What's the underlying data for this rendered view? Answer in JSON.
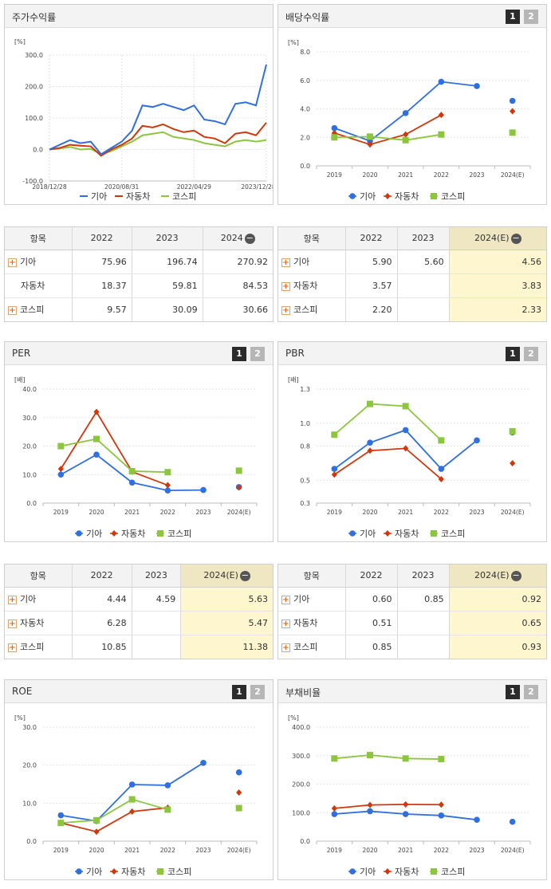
{
  "colors": {
    "kia": "#2f6fe0",
    "auto": "#d0380c",
    "kospi": "#8cc63f"
  },
  "series_names": [
    "기아",
    "자동차",
    "코스피"
  ],
  "stock_return": {
    "title": "주가수익률",
    "chart_data": {
      "type": "line",
      "unit": "[%]",
      "ylim": [
        -100,
        300
      ],
      "yticks": [
        "300.0",
        "200.0",
        "100.0",
        "0.0",
        "-100.0"
      ],
      "xticks": [
        "2018/12/28",
        "2020/08/31",
        "2022/04/29",
        "2023/12/28"
      ],
      "x": [
        "2018/12/28",
        "2019/03",
        "2019/06",
        "2019/09",
        "2019/12",
        "2020/03",
        "2020/06",
        "2020/08/31",
        "2020/11",
        "2021/02",
        "2021/05",
        "2021/08",
        "2021/11",
        "2022/02",
        "2022/04/29",
        "2022/07",
        "2022/10",
        "2023/01",
        "2023/04",
        "2023/07",
        "2023/10",
        "2023/12/28"
      ],
      "series": [
        {
          "name": "기아",
          "values": [
            0,
            15,
            30,
            20,
            25,
            -15,
            5,
            25,
            60,
            140,
            135,
            145,
            135,
            125,
            140,
            95,
            90,
            80,
            145,
            150,
            140,
            270
          ]
        },
        {
          "name": "자동차",
          "values": [
            0,
            5,
            15,
            12,
            10,
            -20,
            0,
            15,
            35,
            75,
            70,
            80,
            65,
            55,
            60,
            40,
            35,
            20,
            50,
            55,
            45,
            85
          ]
        },
        {
          "name": "코스피",
          "values": [
            0,
            3,
            8,
            0,
            2,
            -15,
            -5,
            10,
            25,
            45,
            50,
            55,
            40,
            35,
            30,
            20,
            15,
            10,
            25,
            30,
            25,
            30
          ]
        }
      ]
    }
  },
  "dividend": {
    "title": "배당수익률",
    "chart_data": {
      "type": "line",
      "unit": "[%]",
      "ylim": [
        0,
        8
      ],
      "yticks": [
        "8.0",
        "6.0",
        "4.0",
        "2.0",
        "0.0"
      ],
      "categories": [
        "2019",
        "2020",
        "2021",
        "2022",
        "2023",
        "2024(E)"
      ],
      "series": [
        {
          "name": "기아",
          "values": [
            2.65,
            1.75,
            3.7,
            5.9,
            5.6,
            4.56
          ]
        },
        {
          "name": "자동차",
          "values": [
            2.3,
            1.5,
            2.2,
            3.57,
            null,
            3.83
          ]
        },
        {
          "name": "코스피",
          "values": [
            2.0,
            2.05,
            1.8,
            2.2,
            null,
            2.33
          ]
        }
      ]
    }
  },
  "per": {
    "title": "PER",
    "chart_data": {
      "type": "line",
      "unit": "[배]",
      "ylim": [
        0,
        40
      ],
      "yticks": [
        "40.0",
        "30.0",
        "20.0",
        "10.0",
        "0.0"
      ],
      "categories": [
        "2019",
        "2020",
        "2021",
        "2022",
        "2023",
        "2024(E)"
      ],
      "series": [
        {
          "name": "기아",
          "values": [
            10.0,
            17.0,
            7.2,
            4.44,
            4.59,
            5.63
          ]
        },
        {
          "name": "자동차",
          "values": [
            12.0,
            32.0,
            11.0,
            6.28,
            null,
            5.47
          ]
        },
        {
          "name": "코스피",
          "values": [
            20.0,
            22.5,
            11.2,
            10.85,
            null,
            11.38
          ]
        }
      ]
    }
  },
  "pbr": {
    "title": "PBR",
    "chart_data": {
      "type": "line",
      "unit": "[배]",
      "ylim": [
        0.3,
        1.3
      ],
      "yticks": [
        "1.3",
        "1.0",
        "0.8",
        "0.5",
        "0.3"
      ],
      "categories": [
        "2019",
        "2020",
        "2021",
        "2022",
        "2023",
        "2024(E)"
      ],
      "series": [
        {
          "name": "기아",
          "values": [
            0.6,
            0.83,
            0.94,
            0.6,
            0.85,
            0.92
          ]
        },
        {
          "name": "자동차",
          "values": [
            0.55,
            0.76,
            0.78,
            0.51,
            null,
            0.65
          ]
        },
        {
          "name": "코스피",
          "values": [
            0.9,
            1.17,
            1.15,
            0.85,
            null,
            0.93
          ]
        }
      ]
    }
  },
  "roe": {
    "title": "ROE",
    "chart_data": {
      "type": "line",
      "unit": "[%]",
      "ylim": [
        0,
        30
      ],
      "yticks": [
        "30.0",
        "20.0",
        "10.0",
        "0.0"
      ],
      "categories": [
        "2019",
        "2020",
        "2021",
        "2022",
        "2023",
        "2024(E)"
      ],
      "series": [
        {
          "name": "기아",
          "values": [
            6.8,
            5.3,
            14.9,
            14.7,
            20.6,
            18.1
          ]
        },
        {
          "name": "자동차",
          "values": [
            4.8,
            2.5,
            7.8,
            8.8,
            null,
            12.8
          ]
        },
        {
          "name": "코스피",
          "values": [
            4.8,
            5.5,
            11.0,
            8.3,
            null,
            8.7
          ]
        }
      ]
    }
  },
  "debt": {
    "title": "부채비율",
    "chart_data": {
      "type": "line",
      "unit": "[%]",
      "ylim": [
        0,
        400
      ],
      "yticks": [
        "400.0",
        "300.0",
        "200.0",
        "100.0",
        "0.0"
      ],
      "categories": [
        "2019",
        "2020",
        "2021",
        "2022",
        "2023",
        "2024(E)"
      ],
      "series": [
        {
          "name": "기아",
          "values": [
            95,
            105,
            95,
            90,
            75,
            68
          ]
        },
        {
          "name": "자동차",
          "values": [
            115,
            127,
            129,
            128,
            null,
            null
          ]
        },
        {
          "name": "코스피",
          "values": [
            290,
            302,
            290,
            288,
            null,
            null
          ]
        }
      ]
    }
  },
  "tables": {
    "stock": {
      "headers": [
        "항목",
        "2022",
        "2023",
        "2024"
      ],
      "rows": [
        {
          "name": "기아",
          "v": [
            "75.96",
            "196.74",
            "270.92"
          ]
        },
        {
          "name": "자동차",
          "v": [
            "18.37",
            "59.81",
            "84.53"
          ]
        },
        {
          "name": "코스피",
          "v": [
            "9.57",
            "30.09",
            "30.66"
          ]
        }
      ]
    },
    "dividend": {
      "headers": [
        "항목",
        "2022",
        "2023",
        "2024(E)"
      ],
      "rows": [
        {
          "name": "기아",
          "v": [
            "5.90",
            "5.60",
            "4.56"
          ]
        },
        {
          "name": "자동차",
          "v": [
            "3.57",
            "",
            "3.83"
          ]
        },
        {
          "name": "코스피",
          "v": [
            "2.20",
            "",
            "2.33"
          ]
        }
      ]
    },
    "per": {
      "headers": [
        "항목",
        "2022",
        "2023",
        "2024(E)"
      ],
      "rows": [
        {
          "name": "기아",
          "v": [
            "4.44",
            "4.59",
            "5.63"
          ]
        },
        {
          "name": "자동차",
          "v": [
            "6.28",
            "",
            "5.47"
          ]
        },
        {
          "name": "코스피",
          "v": [
            "10.85",
            "",
            "11.38"
          ]
        }
      ]
    },
    "pbr": {
      "headers": [
        "항목",
        "2022",
        "2023",
        "2024(E)"
      ],
      "rows": [
        {
          "name": "기아",
          "v": [
            "0.60",
            "0.85",
            "0.92"
          ]
        },
        {
          "name": "자동차",
          "v": [
            "0.51",
            "",
            "0.65"
          ]
        },
        {
          "name": "코스피",
          "v": [
            "0.85",
            "",
            "0.93"
          ]
        }
      ]
    }
  },
  "pagination": {
    "p1": "1",
    "p2": "2"
  },
  "toggle": {
    "minus": "−",
    "plus": "+"
  }
}
